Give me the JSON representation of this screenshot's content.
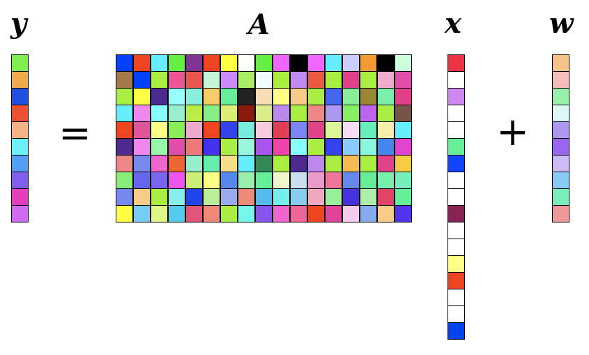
{
  "labels": {
    "y": "y",
    "A": "A",
    "x": "x",
    "w": "w"
  },
  "operators": {
    "equals": "=",
    "plus": "+"
  },
  "vector_y": [
    "#80ee50",
    "#f2aa50",
    "#2050e0",
    "#ec5030",
    "#f6b486",
    "#6eeef8",
    "#52a0f4",
    "#8060ea",
    "#e43ebc",
    "#d068f2"
  ],
  "matrix_A": [
    [
      "#0040ff",
      "#ee4422",
      "#66eeff",
      "#66ee44",
      "#7f3393",
      "#ee4422",
      "#ffff44",
      "#ffffff",
      "#66ee44",
      "#ee66ff",
      "#000000",
      "#ee66ff",
      "#66eeff",
      "#ccccff",
      "#f29a33",
      "#000000",
      "#ccffdd"
    ],
    [
      "#a37948",
      "#0040ff",
      "#aaee44",
      "#ee5599",
      "#e8564e",
      "#c2f6d6",
      "#cc88ff",
      "#aaee66",
      "#f0fcfc",
      "#aaee44",
      "#c28aee",
      "#ea5a42",
      "#aaee44",
      "#e0408a",
      "#aaee44",
      "#f0aacc",
      "#e04eaa"
    ],
    [
      "#aaee44",
      "#ffff44",
      "#4c2a8e",
      "#99ffff",
      "#88eedd",
      "#f6cc66",
      "#66ee99",
      "#222222",
      "#f6ddb3",
      "#ffff88",
      "#f6cc88",
      "#aaee44",
      "#4466ee",
      "#88ee99",
      "#998833",
      "#77eeaa",
      "#e0408a"
    ],
    [
      "#66eeff",
      "#ee88ee",
      "#88ffff",
      "#99eecc",
      "#bbee44",
      "#88ee88",
      "#ddee77",
      "#8b1a0e",
      "#ddee88",
      "#bb88ee",
      "#aaee44",
      "#ee8888",
      "#aa99ee",
      "#88ee66",
      "#bb66ee",
      "#aaee44",
      "#765548"
    ],
    [
      "#ee4422",
      "#e05599",
      "#ffff88",
      "#88ee55",
      "#eeaacc",
      "#ee4422",
      "#3344ee",
      "#77eedd",
      "#f6ccdd",
      "#e03e55",
      "#7b88f4",
      "#e04488",
      "#ddf699",
      "#f6dcf6",
      "#66eebb",
      "#f6eeaa",
      "#66eeff"
    ],
    [
      "#4e2a8e",
      "#ee88ee",
      "#99f6aa",
      "#e04eaa",
      "#ee7777",
      "#4433ee",
      "#aaee44",
      "#99f6dd",
      "#aa55ee",
      "#ee44aa",
      "#88ffff",
      "#aaee44",
      "#3344ee",
      "#88ccff",
      "#88f6dd",
      "#4488ee",
      "#e044cc"
    ],
    [
      "#ee8888",
      "#7788ee",
      "#ee66cc",
      "#ee6633",
      "#99eecc",
      "#66eeaa",
      "#f6dd88",
      "#66eeff",
      "#338855",
      "#aaee44",
      "#4c2a8e",
      "#bb88ee",
      "#aaee44",
      "#f6bb55",
      "#aaee44",
      "#e04488",
      "#f6cc44"
    ],
    [
      "#88ee77",
      "#6666ee",
      "#7766ee",
      "#ee55ee",
      "#ccee77",
      "#ffff88",
      "#5588ee",
      "#99eeaa",
      "#66ee99",
      "#eef6cc",
      "#ccddee",
      "#ee99cc",
      "#ee7799",
      "#6688ee",
      "#66ee99",
      "#77eeaa",
      "#77eebb"
    ],
    [
      "#7788ee",
      "#f6cc88",
      "#aaee44",
      "#88eeee",
      "#2244ee",
      "#bbee99",
      "#99aaee",
      "#ee8877",
      "#55bbee",
      "#77eeee",
      "#88ccee",
      "#eeaabb",
      "#99ee99",
      "#4433dd",
      "#aaeeaa",
      "#e04466",
      "#66ee99"
    ],
    [
      "#ffff44",
      "#77ccf6",
      "#ddf688",
      "#55ccee",
      "#e05577",
      "#ee8877",
      "#aaee44",
      "#77f6ee",
      "#8855ee",
      "#ee66cc",
      "#ee6699",
      "#ee4422",
      "#e04499",
      "#f6ccee",
      "#88aaee",
      "#f6cc88",
      "#5533ee"
    ]
  ],
  "vector_x": [
    "#ee3344",
    "#ffffff",
    "#cc88ee",
    "#ffffff",
    "#ffffff",
    "#66ee99",
    "#1144ff",
    "#ffffff",
    "#ffffff",
    "#882255",
    "#ffffff",
    "#ffffff",
    "#ffff88",
    "#ee4422",
    "#ffffff",
    "#ffffff",
    "#0044ee"
  ],
  "vector_w": [
    "#f6c488",
    "#f6bbbb",
    "#99eeaa",
    "#ddf6f6",
    "#aa99ee",
    "#9966ee",
    "#ccbbf6",
    "#88ccf6",
    "#77eebb",
    "#ee9999"
  ]
}
